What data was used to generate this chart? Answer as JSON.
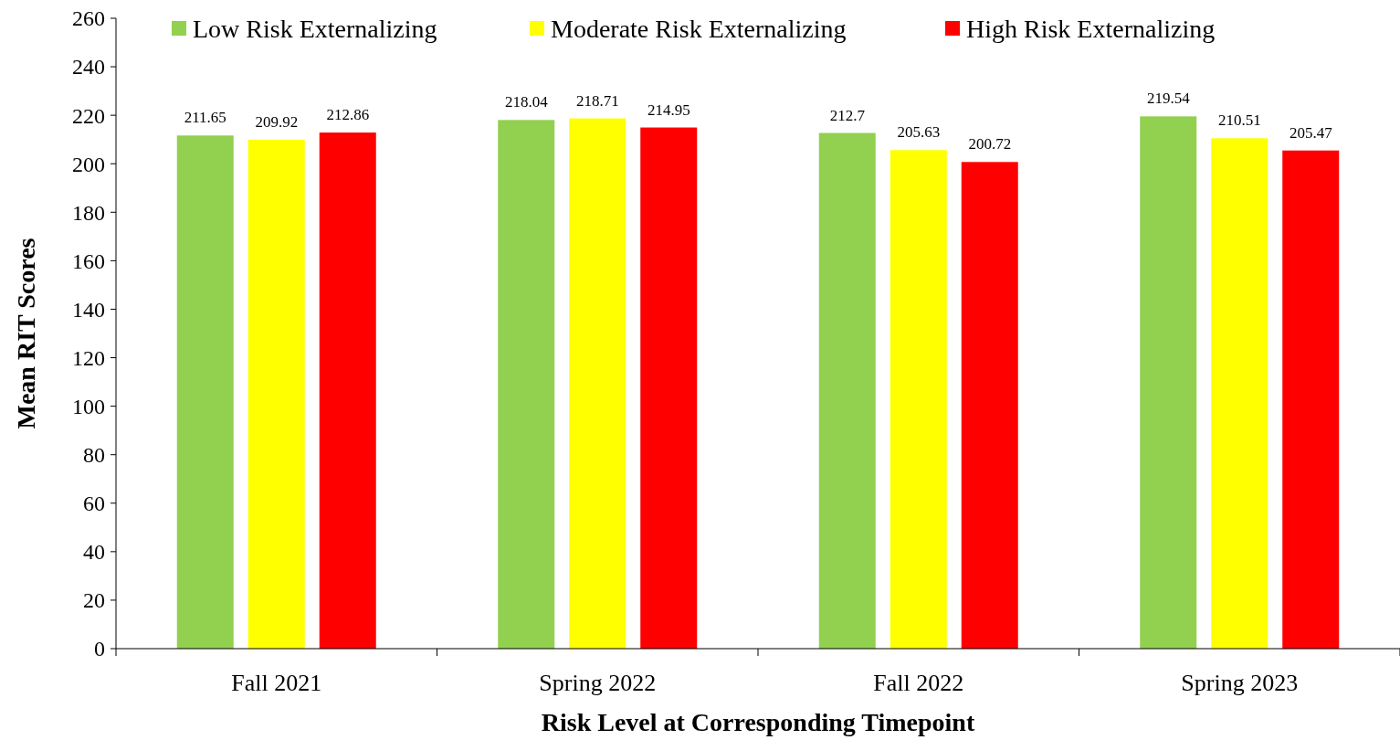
{
  "chart_data": {
    "type": "bar",
    "xlabel": "Risk Level at Corresponding Timepoint",
    "ylabel": "Mean RIT Scores",
    "categories": [
      "Fall 2021",
      "Spring 2022",
      "Fall 2022",
      "Spring 2023"
    ],
    "series": [
      {
        "name": "Low Risk Externalizing",
        "color": "#92d050",
        "values": [
          211.65,
          218.04,
          212.7,
          219.54
        ]
      },
      {
        "name": "Moderate Risk Externalizing",
        "color": "#ffff00",
        "values": [
          209.92,
          218.71,
          205.63,
          210.51
        ]
      },
      {
        "name": "High Risk Externalizing",
        "color": "#ff0000",
        "values": [
          212.86,
          214.95,
          200.72,
          205.47
        ]
      }
    ],
    "ylim": [
      0,
      260
    ],
    "yticks": [
      0,
      20,
      40,
      60,
      80,
      100,
      120,
      140,
      160,
      180,
      200,
      220,
      240,
      260
    ],
    "data_labels": true,
    "legend": "top",
    "grid": false
  }
}
